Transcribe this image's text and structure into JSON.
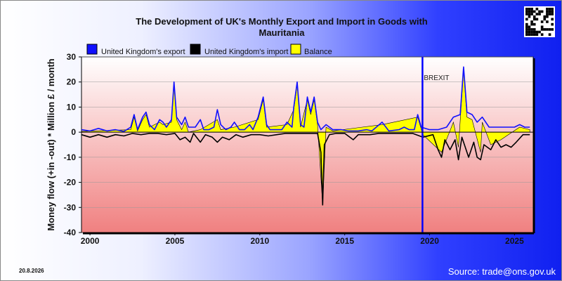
{
  "chart_data": {
    "type": "line",
    "title_line1": "The Development of UK's Monthly Export and Import in Goods with",
    "title_line2": "Mauritania",
    "ylabel": "Money flow (+in -out) * Million £ / month",
    "ylim": [
      -40,
      30
    ],
    "yticks": [
      "30",
      "20",
      "10",
      "0",
      "-10",
      "-20",
      "-30",
      "-40"
    ],
    "xlim": [
      1999.5,
      2026.1
    ],
    "xticks": [
      {
        "label": "2000",
        "x": 2000
      },
      {
        "label": "2005",
        "x": 2005
      },
      {
        "label": "2010",
        "x": 2010
      },
      {
        "label": "2015",
        "x": 2015
      },
      {
        "label": "2020",
        "x": 2020
      },
      {
        "label": "2025",
        "x": 2025
      }
    ],
    "annotation": {
      "label": "BREXIT",
      "x": 2019.58
    },
    "colors": {
      "export": "#1010ff",
      "import": "#000000",
      "balance": "#ffff00",
      "brexit_line": "#0000ff"
    },
    "series": [
      {
        "name": "United Kingdom's export",
        "key": "export",
        "points": [
          [
            1999.5,
            1
          ],
          [
            2000.0,
            0.5
          ],
          [
            2000.5,
            1.5
          ],
          [
            2001.0,
            0.5
          ],
          [
            2001.5,
            1
          ],
          [
            2002.0,
            0.3
          ],
          [
            2002.4,
            2
          ],
          [
            2002.6,
            7
          ],
          [
            2002.8,
            1
          ],
          [
            2003.1,
            6
          ],
          [
            2003.3,
            8
          ],
          [
            2003.5,
            3
          ],
          [
            2003.8,
            1
          ],
          [
            2004.1,
            5
          ],
          [
            2004.3,
            4
          ],
          [
            2004.5,
            2
          ],
          [
            2004.8,
            5
          ],
          [
            2004.95,
            20
          ],
          [
            2005.1,
            6
          ],
          [
            2005.4,
            3
          ],
          [
            2005.6,
            6
          ],
          [
            2005.8,
            2
          ],
          [
            2006.2,
            2
          ],
          [
            2006.5,
            5
          ],
          [
            2006.7,
            1
          ],
          [
            2007.0,
            1
          ],
          [
            2007.3,
            2
          ],
          [
            2007.5,
            9
          ],
          [
            2007.7,
            3
          ],
          [
            2008.0,
            1
          ],
          [
            2008.3,
            2
          ],
          [
            2008.5,
            4
          ],
          [
            2008.8,
            1
          ],
          [
            2009.1,
            1
          ],
          [
            2009.4,
            3
          ],
          [
            2009.6,
            1
          ],
          [
            2009.9,
            6
          ],
          [
            2010.2,
            14
          ],
          [
            2010.4,
            3
          ],
          [
            2010.6,
            1
          ],
          [
            2011.0,
            1
          ],
          [
            2011.3,
            1
          ],
          [
            2011.6,
            4
          ],
          [
            2011.9,
            2
          ],
          [
            2012.0,
            10
          ],
          [
            2012.2,
            20
          ],
          [
            2012.4,
            3
          ],
          [
            2012.6,
            2
          ],
          [
            2012.8,
            14
          ],
          [
            2013.0,
            8
          ],
          [
            2013.2,
            14
          ],
          [
            2013.4,
            4
          ],
          [
            2013.6,
            1
          ],
          [
            2013.9,
            3
          ],
          [
            2014.3,
            1
          ],
          [
            2014.8,
            1
          ],
          [
            2015.2,
            0.5
          ],
          [
            2015.8,
            0.5
          ],
          [
            2016.3,
            1
          ],
          [
            2016.6,
            0.5
          ],
          [
            2017.2,
            4
          ],
          [
            2017.6,
            0.5
          ],
          [
            2018.2,
            1
          ],
          [
            2018.5,
            2
          ],
          [
            2018.8,
            1
          ],
          [
            2019.1,
            1
          ],
          [
            2019.3,
            7
          ],
          [
            2019.5,
            2
          ],
          [
            2020.0,
            1
          ],
          [
            2020.5,
            1
          ],
          [
            2021.0,
            2
          ],
          [
            2021.4,
            6
          ],
          [
            2021.8,
            7
          ],
          [
            2022.0,
            26
          ],
          [
            2022.2,
            8
          ],
          [
            2022.5,
            7
          ],
          [
            2022.8,
            4
          ],
          [
            2023.1,
            6
          ],
          [
            2023.5,
            2
          ],
          [
            2024.0,
            2
          ],
          [
            2024.5,
            2
          ],
          [
            2025.0,
            2
          ],
          [
            2025.3,
            3
          ],
          [
            2025.6,
            2
          ],
          [
            2025.9,
            2
          ]
        ]
      },
      {
        "name": "United Kingdom's import",
        "key": "import",
        "points": [
          [
            1999.5,
            -1
          ],
          [
            2000.0,
            -2
          ],
          [
            2000.5,
            -1
          ],
          [
            2001.0,
            -2
          ],
          [
            2001.5,
            -1
          ],
          [
            2002.0,
            -1.5
          ],
          [
            2002.5,
            -0.5
          ],
          [
            2003.0,
            -1
          ],
          [
            2003.5,
            -0.5
          ],
          [
            2004.0,
            -0.5
          ],
          [
            2004.5,
            -1
          ],
          [
            2005.0,
            -0.5
          ],
          [
            2005.3,
            -3
          ],
          [
            2005.6,
            -2
          ],
          [
            2005.9,
            -4
          ],
          [
            2006.1,
            -0.5
          ],
          [
            2006.5,
            -4
          ],
          [
            2006.8,
            -1
          ],
          [
            2007.2,
            -2
          ],
          [
            2007.5,
            -4
          ],
          [
            2007.8,
            -2
          ],
          [
            2008.2,
            -3
          ],
          [
            2008.6,
            -1
          ],
          [
            2009.0,
            -2
          ],
          [
            2009.5,
            -1
          ],
          [
            2010.0,
            -1
          ],
          [
            2010.5,
            -1.5
          ],
          [
            2011.0,
            -1
          ],
          [
            2011.5,
            -0.5
          ],
          [
            2012.0,
            -0.5
          ],
          [
            2012.5,
            -0.5
          ],
          [
            2013.0,
            -0.5
          ],
          [
            2013.4,
            -0.5
          ],
          [
            2013.6,
            -8
          ],
          [
            2013.7,
            -29
          ],
          [
            2013.8,
            -5
          ],
          [
            2014.1,
            -1
          ],
          [
            2014.5,
            -0.5
          ],
          [
            2015.0,
            -0.5
          ],
          [
            2015.5,
            -3
          ],
          [
            2015.8,
            -1
          ],
          [
            2016.5,
            -1
          ],
          [
            2017.0,
            -0.5
          ],
          [
            2018.0,
            -0.5
          ],
          [
            2019.0,
            -0.5
          ],
          [
            2019.6,
            -2
          ],
          [
            2020.2,
            -1
          ],
          [
            2020.5,
            -7
          ],
          [
            2020.7,
            -10
          ],
          [
            2020.9,
            -3
          ],
          [
            2021.2,
            -7
          ],
          [
            2021.5,
            -3
          ],
          [
            2021.7,
            -11
          ],
          [
            2021.9,
            -2
          ],
          [
            2022.3,
            -10
          ],
          [
            2022.6,
            -4
          ],
          [
            2022.8,
            -10
          ],
          [
            2023.0,
            -11
          ],
          [
            2023.2,
            -5
          ],
          [
            2023.6,
            -7
          ],
          [
            2023.9,
            -3
          ],
          [
            2024.2,
            -6
          ],
          [
            2024.5,
            -5
          ],
          [
            2024.8,
            -6
          ],
          [
            2025.1,
            -4
          ],
          [
            2025.5,
            -1
          ],
          [
            2025.9,
            -1
          ]
        ]
      },
      {
        "name": "Balance",
        "key": "balance",
        "points": [
          [
            1999.5,
            0.3
          ],
          [
            2002.4,
            1
          ],
          [
            2002.6,
            6
          ],
          [
            2002.8,
            0.5
          ],
          [
            2003.1,
            5
          ],
          [
            2003.3,
            7
          ],
          [
            2003.5,
            2
          ],
          [
            2004.1,
            4
          ],
          [
            2004.3,
            3
          ],
          [
            2004.8,
            4
          ],
          [
            2004.95,
            19
          ],
          [
            2005.1,
            5
          ],
          [
            2005.4,
            1
          ],
          [
            2005.6,
            4
          ],
          [
            2005.8,
            0
          ],
          [
            2006.5,
            1
          ],
          [
            2007.5,
            5
          ],
          [
            2007.7,
            1
          ],
          [
            2008.5,
            2
          ],
          [
            2009.9,
            5
          ],
          [
            2010.2,
            13
          ],
          [
            2010.4,
            2
          ],
          [
            2011.6,
            3
          ],
          [
            2012.0,
            9
          ],
          [
            2012.2,
            19
          ],
          [
            2012.4,
            2
          ],
          [
            2012.8,
            13
          ],
          [
            2013.0,
            7
          ],
          [
            2013.2,
            13
          ],
          [
            2013.4,
            3
          ],
          [
            2013.7,
            -29
          ],
          [
            2013.9,
            2
          ],
          [
            2014.3,
            0.5
          ],
          [
            2017.2,
            3
          ],
          [
            2019.3,
            6
          ],
          [
            2019.6,
            -1
          ],
          [
            2020.7,
            -8
          ],
          [
            2021.4,
            4
          ],
          [
            2021.7,
            -6
          ],
          [
            2022.0,
            25
          ],
          [
            2022.2,
            6
          ],
          [
            2022.5,
            5
          ],
          [
            2023.0,
            -8
          ],
          [
            2023.1,
            4
          ],
          [
            2023.6,
            -5
          ],
          [
            2024.2,
            -3
          ],
          [
            2025.3,
            2
          ],
          [
            2025.9,
            1
          ]
        ]
      }
    ],
    "legend_position": "top-left",
    "date_stamp": "20.8.2026",
    "source": "Source: trade@ons.gov.uk"
  }
}
